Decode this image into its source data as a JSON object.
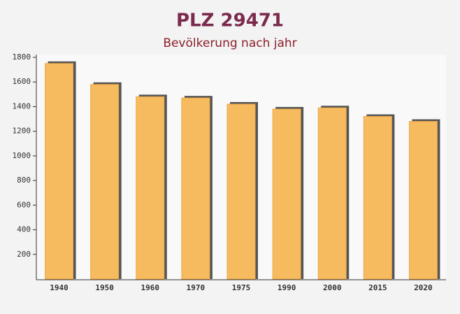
{
  "chart_data": {
    "type": "bar",
    "title": "PLZ 29471",
    "subtitle": "Bevölkerung nach jahr",
    "categories": [
      "1940",
      "1950",
      "1960",
      "1970",
      "1975",
      "1990",
      "2000",
      "2015",
      "2020"
    ],
    "values": [
      1750,
      1580,
      1480,
      1470,
      1420,
      1380,
      1390,
      1320,
      1280
    ],
    "color": "#f7bb5f",
    "ylim": [
      0,
      1800
    ],
    "yticks": [
      200,
      400,
      600,
      800,
      1000,
      1200,
      1400,
      1600,
      1800
    ],
    "grid": false
  }
}
